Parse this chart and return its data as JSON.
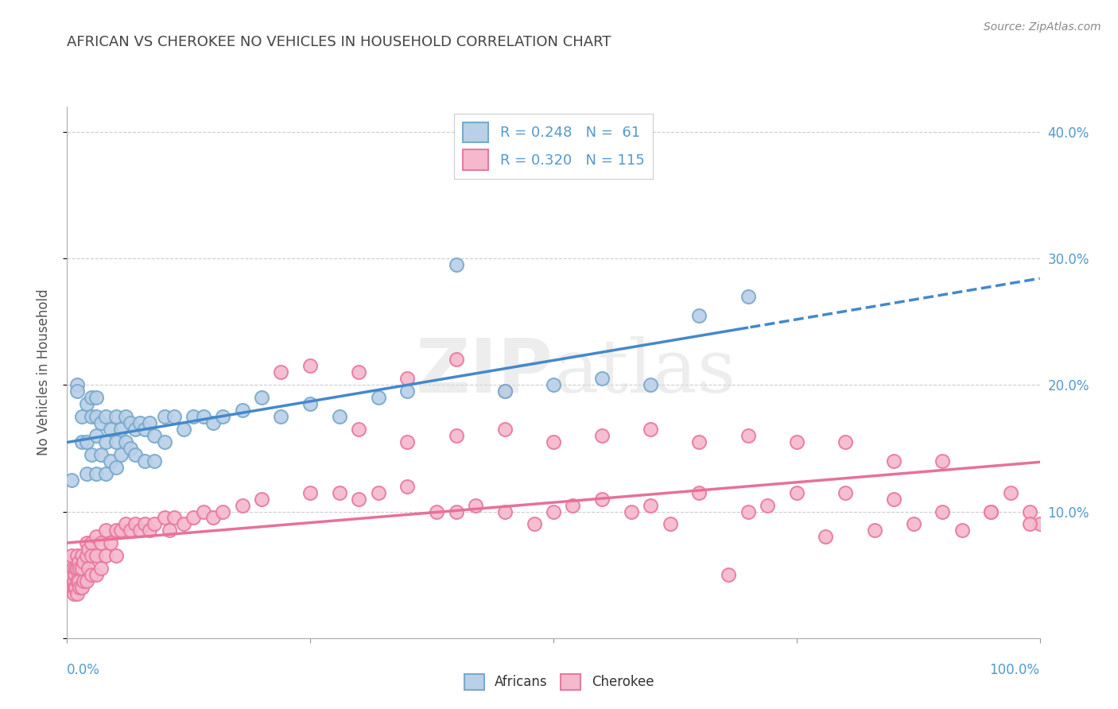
{
  "title": "AFRICAN VS CHEROKEE NO VEHICLES IN HOUSEHOLD CORRELATION CHART",
  "source": "Source: ZipAtlas.com",
  "ylabel_label": "No Vehicles in Household",
  "africans_R": "0.248",
  "africans_N": "61",
  "cherokee_R": "0.320",
  "cherokee_N": "115",
  "africans_marker_face": "#B8D0E8",
  "africans_marker_edge": "#7AAACB",
  "cherokee_marker_face": "#F5B8CC",
  "cherokee_marker_edge": "#E87AA0",
  "trend_africans_color": "#4488CC",
  "trend_cherokee_color": "#E8709A",
  "background_color": "#FFFFFF",
  "grid_color": "#CCCCCC",
  "title_color": "#444444",
  "source_color": "#888888",
  "axis_label_color": "#5599CC",
  "xlim": [
    0.0,
    1.0
  ],
  "ylim": [
    0.0,
    0.42
  ],
  "yticks": [
    0.0,
    0.1,
    0.2,
    0.3,
    0.4
  ],
  "xtick_positions": [
    0.0,
    1.0
  ],
  "xtick_labels": [
    "0.0%",
    "100.0%"
  ],
  "ytick_labels_right": [
    "",
    "10.0%",
    "20.0%",
    "30.0%",
    "40.0%"
  ],
  "africans_x": [
    0.005,
    0.01,
    0.01,
    0.015,
    0.015,
    0.02,
    0.02,
    0.02,
    0.025,
    0.025,
    0.025,
    0.03,
    0.03,
    0.03,
    0.03,
    0.035,
    0.035,
    0.04,
    0.04,
    0.04,
    0.045,
    0.045,
    0.05,
    0.05,
    0.05,
    0.055,
    0.055,
    0.06,
    0.06,
    0.065,
    0.065,
    0.07,
    0.07,
    0.075,
    0.08,
    0.08,
    0.085,
    0.09,
    0.09,
    0.1,
    0.1,
    0.11,
    0.12,
    0.13,
    0.14,
    0.15,
    0.16,
    0.18,
    0.2,
    0.22,
    0.25,
    0.28,
    0.32,
    0.35,
    0.4,
    0.45,
    0.5,
    0.55,
    0.6,
    0.65,
    0.7
  ],
  "africans_y": [
    0.125,
    0.2,
    0.195,
    0.175,
    0.155,
    0.185,
    0.155,
    0.13,
    0.19,
    0.175,
    0.145,
    0.19,
    0.175,
    0.16,
    0.13,
    0.17,
    0.145,
    0.175,
    0.155,
    0.13,
    0.165,
    0.14,
    0.175,
    0.155,
    0.135,
    0.165,
    0.145,
    0.175,
    0.155,
    0.17,
    0.15,
    0.165,
    0.145,
    0.17,
    0.165,
    0.14,
    0.17,
    0.16,
    0.14,
    0.175,
    0.155,
    0.175,
    0.165,
    0.175,
    0.175,
    0.17,
    0.175,
    0.18,
    0.19,
    0.175,
    0.185,
    0.175,
    0.19,
    0.195,
    0.295,
    0.195,
    0.2,
    0.205,
    0.2,
    0.255,
    0.27
  ],
  "cherokee_x": [
    0.002,
    0.003,
    0.004,
    0.005,
    0.005,
    0.006,
    0.006,
    0.007,
    0.007,
    0.008,
    0.008,
    0.009,
    0.009,
    0.01,
    0.01,
    0.01,
    0.01,
    0.012,
    0.012,
    0.013,
    0.013,
    0.015,
    0.015,
    0.015,
    0.017,
    0.017,
    0.02,
    0.02,
    0.02,
    0.022,
    0.022,
    0.025,
    0.025,
    0.025,
    0.03,
    0.03,
    0.03,
    0.035,
    0.035,
    0.04,
    0.04,
    0.045,
    0.05,
    0.05,
    0.055,
    0.06,
    0.065,
    0.07,
    0.075,
    0.08,
    0.085,
    0.09,
    0.1,
    0.105,
    0.11,
    0.12,
    0.13,
    0.14,
    0.15,
    0.16,
    0.18,
    0.2,
    0.22,
    0.25,
    0.28,
    0.3,
    0.32,
    0.35,
    0.38,
    0.4,
    0.42,
    0.45,
    0.48,
    0.5,
    0.52,
    0.55,
    0.58,
    0.6,
    0.62,
    0.65,
    0.68,
    0.7,
    0.72,
    0.75,
    0.78,
    0.8,
    0.83,
    0.85,
    0.87,
    0.9,
    0.92,
    0.95,
    0.97,
    0.99,
    1.0,
    0.3,
    0.35,
    0.4,
    0.45,
    0.5,
    0.55,
    0.6,
    0.65,
    0.7,
    0.75,
    0.8,
    0.85,
    0.9,
    0.95,
    0.99,
    0.25,
    0.3,
    0.35,
    0.4,
    0.45
  ],
  "cherokee_y": [
    0.055,
    0.05,
    0.06,
    0.065,
    0.04,
    0.055,
    0.04,
    0.045,
    0.035,
    0.05,
    0.04,
    0.055,
    0.04,
    0.065,
    0.055,
    0.045,
    0.035,
    0.06,
    0.045,
    0.055,
    0.04,
    0.065,
    0.055,
    0.04,
    0.06,
    0.045,
    0.075,
    0.065,
    0.045,
    0.07,
    0.055,
    0.075,
    0.065,
    0.05,
    0.08,
    0.065,
    0.05,
    0.075,
    0.055,
    0.085,
    0.065,
    0.075,
    0.085,
    0.065,
    0.085,
    0.09,
    0.085,
    0.09,
    0.085,
    0.09,
    0.085,
    0.09,
    0.095,
    0.085,
    0.095,
    0.09,
    0.095,
    0.1,
    0.095,
    0.1,
    0.105,
    0.11,
    0.21,
    0.115,
    0.115,
    0.11,
    0.115,
    0.12,
    0.1,
    0.1,
    0.105,
    0.1,
    0.09,
    0.1,
    0.105,
    0.11,
    0.1,
    0.105,
    0.09,
    0.115,
    0.05,
    0.1,
    0.105,
    0.115,
    0.08,
    0.115,
    0.085,
    0.11,
    0.09,
    0.1,
    0.085,
    0.1,
    0.115,
    0.1,
    0.09,
    0.165,
    0.155,
    0.16,
    0.165,
    0.155,
    0.16,
    0.165,
    0.155,
    0.16,
    0.155,
    0.155,
    0.14,
    0.14,
    0.1,
    0.09,
    0.215,
    0.21,
    0.205,
    0.22,
    0.195
  ]
}
